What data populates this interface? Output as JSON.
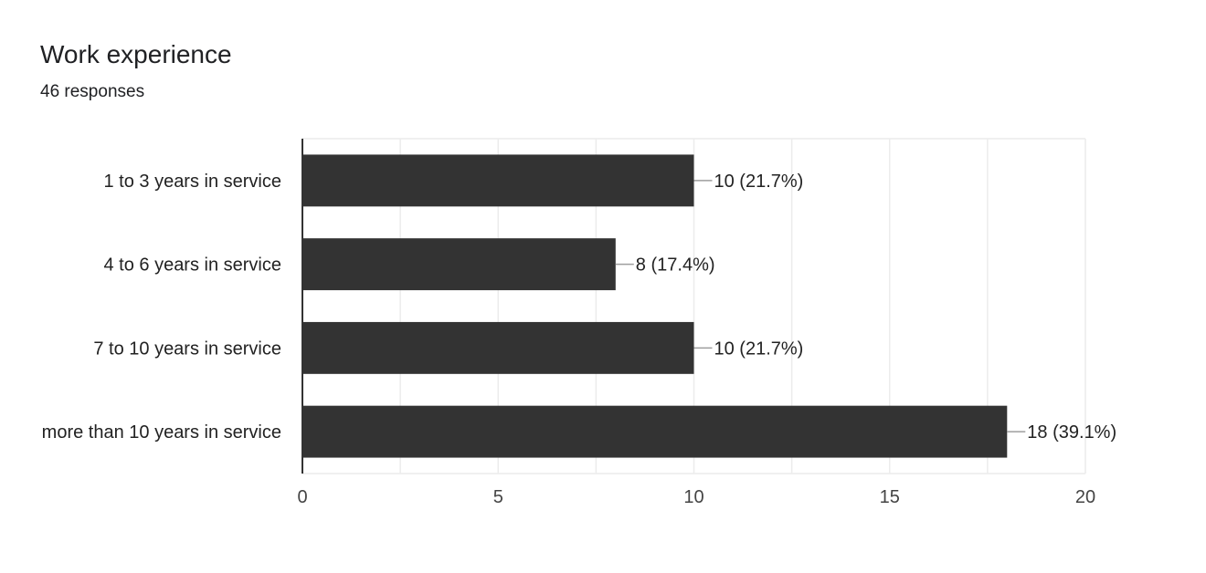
{
  "header": {
    "title": "Work experience",
    "subtitle": "46 responses"
  },
  "chart_data": {
    "type": "bar",
    "orientation": "horizontal",
    "categories": [
      "1 to 3 years in service",
      "4 to 6 years in service",
      "7 to 10 years in service",
      "more than 10 years in service"
    ],
    "values": [
      10,
      8,
      10,
      18
    ],
    "data_labels": [
      "10 (21.7%)",
      "8 (17.4%)",
      "10 (21.7%)",
      "18 (39.1%)"
    ],
    "xlim": [
      0,
      20
    ],
    "xticks": [
      0,
      5,
      10,
      15,
      20
    ],
    "grid": true,
    "bar_color": "#333333",
    "grid_color": "#ececec",
    "axis_color": "#333333"
  }
}
